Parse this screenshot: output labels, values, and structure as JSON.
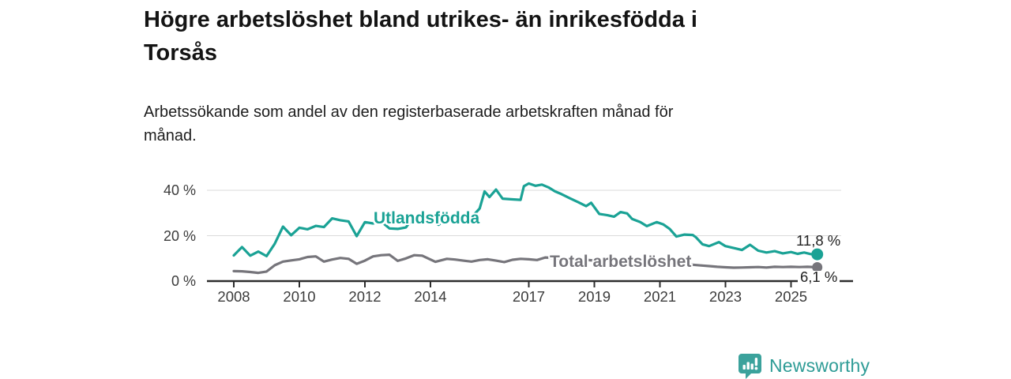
{
  "header": {
    "title_lines": [
      "Högre arbetslöshet bland utrikes- än inrikesfödda i",
      "Torsås"
    ],
    "subtitle_lines": [
      "Arbetssökande som andel av den registerbaserade arbetskraften månad för",
      "månad."
    ]
  },
  "footer": {
    "brand": "Newsworthy",
    "brand_color": "#2E9C96",
    "brand_icon": "bar-chart-speech-bubble",
    "brand_icon_color": "#3BA29C"
  },
  "chart_data": {
    "type": "line",
    "title": "Högre arbetslöshet bland utrikes- än inrikesfödda i Torsås",
    "subtitle": "Arbetssökande som andel av den registerbaserade arbetskraften månad för månad.",
    "xlabel": "",
    "ylabel": "",
    "ylim": [
      0,
      45
    ],
    "xlim": [
      2007.2,
      2026.0
    ],
    "grid": "horizontal",
    "legend_position": "inline-labels",
    "axis_color": "#2D2D2D",
    "gridline_color": "#DBDBDB",
    "tick_label_color": "#3B3B3B",
    "y_ticks": [
      {
        "label": "40 %",
        "value": 40
      },
      {
        "label": "20 %",
        "value": 20
      },
      {
        "label": "0 %",
        "value": 0
      }
    ],
    "x_ticks": [
      {
        "label": "2008",
        "year": 2008
      },
      {
        "label": "2010",
        "year": 2010
      },
      {
        "label": "2012",
        "year": 2012
      },
      {
        "label": "2014",
        "year": 2014
      },
      {
        "label": "2017",
        "year": 2017
      },
      {
        "label": "2019",
        "year": 2019
      },
      {
        "label": "2021",
        "year": 2021
      },
      {
        "label": "2023",
        "year": 2023
      },
      {
        "label": "2025",
        "year": 2025
      }
    ],
    "series": [
      {
        "name": "Utlandsfödda",
        "color": "#1AA295",
        "end_label": "11,8 %",
        "last_value": 11.8,
        "points": [
          [
            2008.0,
            11.3
          ],
          [
            2008.25,
            15.0
          ],
          [
            2008.5,
            11.2
          ],
          [
            2008.75,
            13.0
          ],
          [
            2009.0,
            11.0
          ],
          [
            2009.25,
            16.5
          ],
          [
            2009.5,
            24.0
          ],
          [
            2009.75,
            20.2
          ],
          [
            2010.0,
            23.5
          ],
          [
            2010.25,
            22.8
          ],
          [
            2010.5,
            24.3
          ],
          [
            2010.75,
            23.8
          ],
          [
            2011.0,
            27.6
          ],
          [
            2011.25,
            26.8
          ],
          [
            2011.5,
            26.3
          ],
          [
            2011.75,
            19.8
          ],
          [
            2012.0,
            26.0
          ],
          [
            2012.25,
            25.4
          ],
          [
            2012.5,
            26.2
          ],
          [
            2012.75,
            23.2
          ],
          [
            2013.0,
            23.0
          ],
          [
            2013.25,
            23.6
          ],
          [
            2013.5,
            28.6
          ],
          [
            2013.75,
            28.2
          ],
          [
            2014.0,
            27.4
          ],
          [
            2014.25,
            24.8
          ],
          [
            2014.5,
            27.8
          ],
          [
            2014.75,
            27.2
          ],
          [
            2015.0,
            26.8
          ],
          [
            2015.25,
            28.0
          ],
          [
            2015.5,
            32.0
          ],
          [
            2015.65,
            39.5
          ],
          [
            2015.8,
            37.0
          ],
          [
            2016.0,
            40.3
          ],
          [
            2016.2,
            36.3
          ],
          [
            2016.5,
            36.0
          ],
          [
            2016.75,
            35.8
          ],
          [
            2016.85,
            41.8
          ],
          [
            2017.0,
            43.0
          ],
          [
            2017.2,
            42.0
          ],
          [
            2017.4,
            42.5
          ],
          [
            2017.6,
            41.3
          ],
          [
            2017.8,
            39.5
          ],
          [
            2018.0,
            38.3
          ],
          [
            2018.25,
            36.5
          ],
          [
            2018.5,
            34.8
          ],
          [
            2018.75,
            33.0
          ],
          [
            2018.9,
            34.5
          ],
          [
            2019.15,
            29.6
          ],
          [
            2019.4,
            29.0
          ],
          [
            2019.6,
            28.4
          ],
          [
            2019.8,
            30.4
          ],
          [
            2020.0,
            29.8
          ],
          [
            2020.15,
            27.4
          ],
          [
            2020.4,
            26.0
          ],
          [
            2020.6,
            24.2
          ],
          [
            2020.9,
            26.0
          ],
          [
            2021.1,
            25.0
          ],
          [
            2021.3,
            23.0
          ],
          [
            2021.5,
            19.6
          ],
          [
            2021.75,
            20.5
          ],
          [
            2022.0,
            20.3
          ],
          [
            2022.1,
            19.3
          ],
          [
            2022.3,
            16.2
          ],
          [
            2022.5,
            15.4
          ],
          [
            2022.8,
            17.2
          ],
          [
            2023.0,
            15.4
          ],
          [
            2023.3,
            14.4
          ],
          [
            2023.5,
            13.7
          ],
          [
            2023.75,
            16.0
          ],
          [
            2024.0,
            13.4
          ],
          [
            2024.25,
            12.6
          ],
          [
            2024.5,
            13.2
          ],
          [
            2024.75,
            12.2
          ],
          [
            2025.0,
            12.8
          ],
          [
            2025.2,
            12.0
          ],
          [
            2025.4,
            12.6
          ],
          [
            2025.6,
            11.9
          ],
          [
            2025.8,
            11.8
          ]
        ]
      },
      {
        "name": "Total arbetslöshet",
        "color": "#76757B",
        "end_label": "6,1 %",
        "last_value": 6.1,
        "points": [
          [
            2008.0,
            4.4
          ],
          [
            2008.25,
            4.3
          ],
          [
            2008.5,
            4.0
          ],
          [
            2008.75,
            3.6
          ],
          [
            2009.0,
            4.2
          ],
          [
            2009.25,
            7.0
          ],
          [
            2009.5,
            8.6
          ],
          [
            2009.75,
            9.1
          ],
          [
            2010.0,
            9.6
          ],
          [
            2010.25,
            10.6
          ],
          [
            2010.5,
            10.9
          ],
          [
            2010.75,
            8.6
          ],
          [
            2011.0,
            9.5
          ],
          [
            2011.25,
            10.2
          ],
          [
            2011.5,
            9.8
          ],
          [
            2011.75,
            7.6
          ],
          [
            2012.0,
            9.0
          ],
          [
            2012.25,
            10.9
          ],
          [
            2012.5,
            11.4
          ],
          [
            2012.75,
            11.6
          ],
          [
            2013.0,
            8.9
          ],
          [
            2013.25,
            10.0
          ],
          [
            2013.5,
            11.4
          ],
          [
            2013.75,
            11.2
          ],
          [
            2014.0,
            9.5
          ],
          [
            2014.15,
            8.5
          ],
          [
            2014.5,
            9.8
          ],
          [
            2014.75,
            9.5
          ],
          [
            2015.0,
            9.0
          ],
          [
            2015.25,
            8.6
          ],
          [
            2015.5,
            9.3
          ],
          [
            2015.75,
            9.6
          ],
          [
            2016.0,
            9.0
          ],
          [
            2016.25,
            8.4
          ],
          [
            2016.5,
            9.4
          ],
          [
            2016.75,
            9.8
          ],
          [
            2017.0,
            9.6
          ],
          [
            2017.25,
            9.3
          ],
          [
            2017.5,
            10.4
          ],
          [
            2017.75,
            10.2
          ],
          [
            2018.0,
            9.6
          ],
          [
            2018.25,
            9.2
          ],
          [
            2018.5,
            9.8
          ],
          [
            2018.75,
            9.4
          ],
          [
            2019.0,
            9.0
          ],
          [
            2019.25,
            8.8
          ],
          [
            2019.5,
            9.2
          ],
          [
            2019.75,
            9.4
          ],
          [
            2020.0,
            9.2
          ],
          [
            2020.25,
            9.6
          ],
          [
            2020.5,
            9.4
          ],
          [
            2020.75,
            9.0
          ],
          [
            2021.0,
            8.6
          ],
          [
            2021.25,
            8.2
          ],
          [
            2021.5,
            7.8
          ],
          [
            2021.75,
            7.4
          ],
          [
            2022.0,
            7.2
          ],
          [
            2022.25,
            6.9
          ],
          [
            2022.5,
            6.6
          ],
          [
            2022.75,
            6.3
          ],
          [
            2023.0,
            6.1
          ],
          [
            2023.25,
            5.9
          ],
          [
            2023.5,
            6.0
          ],
          [
            2023.75,
            6.1
          ],
          [
            2024.0,
            6.2
          ],
          [
            2024.25,
            6.0
          ],
          [
            2024.5,
            6.3
          ],
          [
            2024.75,
            6.2
          ],
          [
            2025.0,
            6.3
          ],
          [
            2025.25,
            6.2
          ],
          [
            2025.5,
            6.3
          ],
          [
            2025.8,
            6.1
          ]
        ]
      }
    ]
  }
}
